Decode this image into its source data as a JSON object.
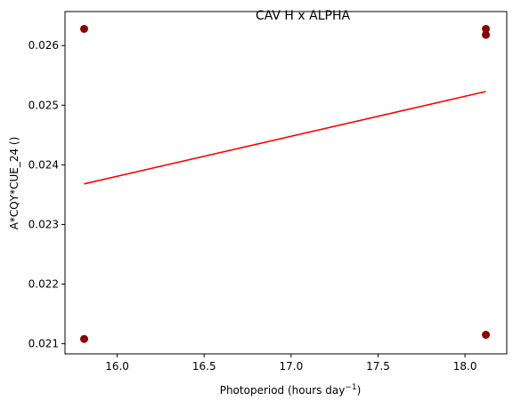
{
  "chart_data": {
    "type": "scatter",
    "title": "CAV H x ALPHA",
    "xlabel": "Photoperiod (hours day",
    "xlabel_sup": "−1",
    "xlabel_suffix": ")",
    "ylabel": "A*CQY*CUE_24 ()",
    "xlim": [
      15.7,
      18.24
    ],
    "ylim": [
      0.02083,
      0.02657
    ],
    "xticks": [
      16.0,
      16.5,
      17.0,
      17.5,
      18.0
    ],
    "xtick_labels": [
      "16.0",
      "16.5",
      "17.0",
      "17.5",
      "18.0"
    ],
    "yticks": [
      0.021,
      0.022,
      0.023,
      0.024,
      0.025,
      0.026
    ],
    "ytick_labels": [
      "0.021",
      "0.022",
      "0.023",
      "0.024",
      "0.025",
      "0.026"
    ],
    "grid": false,
    "points": [
      {
        "x": 15.81,
        "y": 0.02628
      },
      {
        "x": 15.81,
        "y": 0.02108
      },
      {
        "x": 18.12,
        "y": 0.02628
      },
      {
        "x": 18.12,
        "y": 0.02618
      },
      {
        "x": 18.12,
        "y": 0.02115
      }
    ],
    "fit_line": {
      "x": [
        15.81,
        18.12
      ],
      "y": [
        0.02368,
        0.02523
      ]
    },
    "point_color": "#8b0000",
    "line_color": "#ff0000"
  }
}
